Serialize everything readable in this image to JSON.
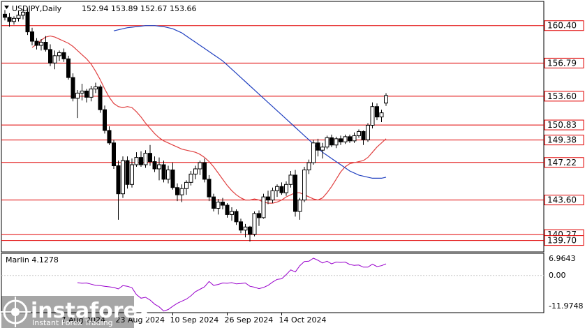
{
  "header": {
    "symbol": "USDJPY,Daily",
    "ohlc": "152.94 153.89 152.67 153.66"
  },
  "indicator": {
    "label": "Marlin 4.1278",
    "scale_top": "6.9643",
    "scale_mid": "0.00",
    "scale_bottom": "-11.9748",
    "color": "#9900cc"
  },
  "watermark": {
    "brand": "instaforex",
    "tagline": "Instant Forex Trading"
  },
  "chart_data": {
    "type": "candlestick",
    "symbol": "USDJPY",
    "timeframe": "Daily",
    "ylim": [
      138.8,
      162.6
    ],
    "x_tick_labels": [
      {
        "bar": 13,
        "label": "7 Aug 2024"
      },
      {
        "bar": 25,
        "label": "23 Aug 2024"
      },
      {
        "bar": 37,
        "label": "10 Sep 2024"
      },
      {
        "bar": 49,
        "label": "26 Sep 2024"
      },
      {
        "bar": 61,
        "label": "14 Oct 2024"
      }
    ],
    "horizontal_levels": [
      {
        "value": 160.4,
        "label": "160.40"
      },
      {
        "value": 156.79,
        "label": "156.79"
      },
      {
        "value": 153.6,
        "label": "153.60"
      },
      {
        "value": 150.83,
        "label": "150.83"
      },
      {
        "value": 149.38,
        "label": "149.38"
      },
      {
        "value": 147.22,
        "label": "147.22"
      },
      {
        "value": 143.6,
        "label": "143.60"
      },
      {
        "value": 140.27,
        "label": "140.27"
      },
      {
        "value": 139.7,
        "label": "139.70"
      }
    ],
    "level_color": "#e00000",
    "ohlc": [
      [
        161.5,
        161.9,
        160.9,
        161.2
      ],
      [
        161.2,
        161.6,
        160.3,
        160.8
      ],
      [
        160.8,
        161.3,
        160.5,
        161.1
      ],
      [
        161.1,
        161.8,
        160.8,
        161.4
      ],
      [
        161.4,
        162.0,
        161.0,
        161.7
      ],
      [
        161.7,
        162.1,
        159.5,
        159.8
      ],
      [
        159.8,
        160.2,
        158.5,
        158.9
      ],
      [
        158.9,
        159.2,
        158.1,
        158.5
      ],
      [
        158.5,
        159.1,
        158.0,
        158.8
      ],
      [
        158.8,
        159.4,
        157.9,
        158.1
      ],
      [
        158.1,
        158.6,
        156.5,
        156.8
      ],
      [
        156.8,
        158.0,
        156.2,
        157.5
      ],
      [
        157.5,
        158.0,
        157.0,
        157.8
      ],
      [
        157.8,
        158.2,
        156.9,
        157.2
      ],
      [
        157.2,
        157.5,
        155.2,
        155.4
      ],
      [
        155.4,
        155.8,
        153.1,
        153.4
      ],
      [
        153.4,
        154.2,
        151.5,
        153.9
      ],
      [
        153.9,
        154.8,
        153.2,
        154.1
      ],
      [
        154.1,
        154.3,
        153.0,
        153.5
      ],
      [
        153.5,
        154.6,
        153.1,
        154.3
      ],
      [
        154.3,
        154.9,
        153.9,
        154.5
      ],
      [
        154.5,
        154.7,
        152.0,
        152.3
      ],
      [
        152.3,
        152.7,
        150.0,
        150.3
      ],
      [
        150.3,
        150.7,
        148.9,
        149.1
      ],
      [
        149.1,
        149.4,
        146.6,
        146.9
      ],
      [
        146.9,
        147.4,
        141.7,
        144.2
      ],
      [
        144.2,
        147.8,
        143.8,
        147.4
      ],
      [
        147.4,
        147.8,
        144.7,
        145.1
      ],
      [
        145.1,
        147.6,
        144.8,
        147.0
      ],
      [
        147.0,
        148.2,
        146.8,
        147.7
      ],
      [
        147.7,
        148.3,
        146.8,
        147.0
      ],
      [
        147.0,
        148.4,
        146.7,
        148.1
      ],
      [
        148.1,
        148.9,
        146.9,
        147.3
      ],
      [
        147.3,
        147.8,
        146.3,
        146.6
      ],
      [
        146.6,
        147.7,
        145.5,
        147.0
      ],
      [
        147.0,
        147.4,
        145.3,
        145.6
      ],
      [
        145.6,
        146.9,
        145.2,
        146.5
      ],
      [
        146.5,
        147.2,
        144.6,
        144.8
      ],
      [
        144.8,
        145.2,
        143.5,
        144.1
      ],
      [
        144.1,
        145.1,
        143.4,
        144.7
      ],
      [
        144.7,
        145.5,
        144.1,
        145.3
      ],
      [
        145.3,
        146.4,
        145.0,
        146.1
      ],
      [
        146.1,
        146.9,
        145.6,
        146.6
      ],
      [
        146.6,
        147.4,
        146.0,
        147.2
      ],
      [
        147.2,
        147.6,
        145.3,
        145.6
      ],
      [
        145.6,
        146.0,
        143.5,
        143.9
      ],
      [
        143.9,
        144.2,
        142.5,
        142.8
      ],
      [
        142.8,
        143.7,
        142.2,
        143.4
      ],
      [
        143.4,
        143.8,
        142.7,
        143.1
      ],
      [
        143.1,
        143.3,
        141.9,
        142.2
      ],
      [
        142.2,
        142.9,
        141.6,
        142.5
      ],
      [
        142.5,
        142.7,
        141.2,
        141.5
      ],
      [
        141.5,
        141.8,
        140.4,
        140.7
      ],
      [
        140.7,
        141.3,
        140.0,
        141.0
      ],
      [
        141.0,
        141.1,
        139.6,
        140.3
      ],
      [
        140.3,
        142.5,
        140.1,
        142.3
      ],
      [
        142.3,
        142.6,
        141.1,
        141.9
      ],
      [
        141.9,
        144.2,
        141.8,
        143.9
      ],
      [
        143.9,
        144.5,
        143.2,
        143.6
      ],
      [
        143.6,
        144.8,
        143.3,
        144.5
      ],
      [
        144.5,
        145.1,
        143.9,
        144.9
      ],
      [
        144.9,
        145.3,
        144.1,
        144.3
      ],
      [
        144.3,
        145.4,
        144.0,
        145.1
      ],
      [
        145.1,
        146.4,
        144.8,
        146.0
      ],
      [
        146.0,
        146.5,
        142.0,
        142.5
      ],
      [
        142.5,
        143.8,
        141.7,
        143.6
      ],
      [
        143.6,
        146.8,
        143.4,
        146.5
      ],
      [
        146.5,
        147.5,
        146.1,
        147.2
      ],
      [
        147.2,
        149.4,
        147.0,
        149.1
      ],
      [
        149.1,
        149.5,
        147.8,
        148.4
      ],
      [
        148.4,
        149.1,
        147.6,
        148.7
      ],
      [
        148.7,
        149.8,
        148.5,
        149.6
      ],
      [
        149.6,
        149.9,
        148.7,
        148.9
      ],
      [
        148.9,
        149.7,
        148.6,
        149.5
      ],
      [
        149.5,
        149.8,
        148.9,
        149.2
      ],
      [
        149.2,
        149.9,
        149.0,
        149.7
      ],
      [
        149.7,
        149.9,
        149.1,
        149.3
      ],
      [
        149.3,
        150.1,
        149.1,
        149.8
      ],
      [
        149.8,
        150.4,
        149.6,
        150.2
      ],
      [
        150.2,
        150.3,
        148.9,
        149.4
      ],
      [
        149.4,
        151.0,
        149.2,
        150.8
      ],
      [
        150.8,
        153.0,
        150.5,
        152.6
      ],
      [
        152.6,
        152.9,
        151.3,
        151.6
      ],
      [
        151.6,
        152.3,
        151.1,
        152.0
      ],
      [
        152.94,
        153.89,
        152.67,
        153.66
      ]
    ],
    "series": [
      {
        "color": "#e04040",
        "values": [
          158.3,
          158.6,
          159.0,
          159.3,
          159.4,
          159.3,
          159.1,
          158.9,
          158.7,
          158.4,
          158.0,
          157.6,
          157.2,
          156.7,
          156.0,
          155.2,
          154.3,
          153.5,
          152.9,
          152.6,
          152.5,
          152.6,
          152.5,
          152.1,
          151.6,
          151.0,
          150.5,
          150.0,
          149.6,
          149.3,
          149.1,
          148.9,
          148.7,
          148.5,
          148.4,
          148.3,
          148.2,
          148.0,
          147.7,
          147.3,
          146.8,
          146.2,
          145.6,
          145.0,
          144.5,
          144.1,
          143.8,
          143.6,
          143.6,
          143.7,
          143.6,
          143.4,
          143.3,
          143.3,
          143.4,
          143.6,
          143.9,
          144.1,
          144.3,
          144.3,
          144.1,
          143.9,
          143.7,
          143.6,
          143.8,
          144.3,
          144.9,
          145.6,
          146.3,
          146.8,
          147.1,
          147.2,
          147.3,
          147.4,
          147.7,
          148.2,
          148.7,
          149.1,
          149.5
        ]
      },
      {
        "color": "#2040c0",
        "values": [
          159.9,
          160.0,
          160.1,
          160.2,
          160.25,
          160.3,
          160.35,
          160.4,
          160.4,
          160.4,
          160.35,
          160.3,
          160.2,
          160.1,
          159.9,
          159.7,
          159.4,
          159.1,
          158.8,
          158.5,
          158.2,
          157.9,
          157.6,
          157.3,
          157.0,
          156.6,
          156.2,
          155.8,
          155.4,
          155.0,
          154.6,
          154.2,
          153.8,
          153.4,
          153.0,
          152.6,
          152.2,
          151.8,
          151.4,
          151.0,
          150.6,
          150.2,
          149.8,
          149.4,
          149.0,
          148.6,
          148.2,
          147.9,
          147.6,
          147.3,
          147.0,
          146.7,
          146.4,
          146.2,
          146.0,
          145.9,
          145.8,
          145.7,
          145.7,
          145.7,
          145.8
        ]
      },
      {
        "color": "#9900cc",
        "values": [
          -2.4,
          -2.6,
          -2.5,
          -2.9,
          -3.3,
          -3.4,
          -3.6,
          -3.8,
          -4.0,
          -4.5,
          -3.4,
          -3.6,
          -4.1,
          -6.4,
          -7.6,
          -7.3,
          -8.2,
          -9.6,
          -10.5,
          -11.9,
          -11.4,
          -10.3,
          -9.3,
          -8.6,
          -7.9,
          -6.8,
          -5.4,
          -4.6,
          -3.8,
          -2.0,
          -3.3,
          -3.0,
          -2.5,
          -2.6,
          -2.4,
          -2.8,
          -2.7,
          -2.5,
          -3.6,
          -3.9,
          -4.4,
          -4.0,
          -3.3,
          -2.2,
          -1.3,
          -1.1,
          0.3,
          1.9,
          1.2,
          3.3,
          4.7,
          4.8,
          5.8,
          5.1,
          4.2,
          4.8,
          3.9,
          4.5,
          4.4,
          4.5,
          3.7,
          3.4,
          3.5,
          2.8,
          2.8,
          3.8,
          3.0,
          3.3,
          3.9
        ]
      }
    ],
    "indicator": {
      "name": "Marlin",
      "value": 4.1278,
      "ylim": [
        -11.9748,
        6.9643
      ]
    }
  }
}
